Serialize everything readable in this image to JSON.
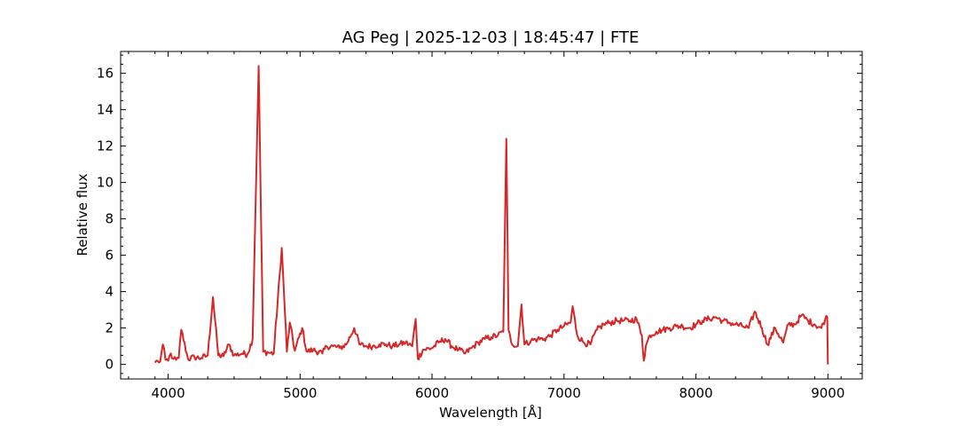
{
  "chart_data": {
    "type": "line",
    "title": "AG Peg | 2025-12-03 | 18:45:47 | FTE",
    "xlabel": "Wavelength [Å]",
    "ylabel": "Relative flux",
    "xlim": [
      3640,
      9260
    ],
    "ylim": [
      -0.8,
      17.2
    ],
    "xticks": [
      4000,
      5000,
      6000,
      7000,
      8000,
      9000
    ],
    "yticks": [
      0,
      2,
      4,
      6,
      8,
      10,
      12,
      14,
      16
    ],
    "grid": false,
    "series_color": "#d62728",
    "series": [
      {
        "x": [
          3900,
          3920,
          3940,
          3960,
          3980,
          4000,
          4020,
          4040,
          4060,
          4080,
          4100,
          4150,
          4200,
          4250,
          4300,
          4340,
          4380,
          4420,
          4460,
          4500,
          4560,
          4600,
          4640,
          4686,
          4720,
          4760,
          4800,
          4861,
          4900,
          4922,
          4960,
          5016,
          5050,
          5100,
          5169,
          5200,
          5250,
          5300,
          5350,
          5411,
          5450,
          5500,
          5550,
          5600,
          5650,
          5700,
          5750,
          5800,
          5850,
          5876,
          5893,
          5930,
          6000,
          6050,
          6100,
          6150,
          6200,
          6250,
          6300,
          6350,
          6400,
          6450,
          6500,
          6540,
          6563,
          6580,
          6600,
          6650,
          6678,
          6700,
          6750,
          6800,
          6850,
          6900,
          6950,
          7000,
          7050,
          7065,
          7100,
          7150,
          7200,
          7250,
          7300,
          7350,
          7400,
          7450,
          7500,
          7550,
          7590,
          7605,
          7620,
          7650,
          7700,
          7750,
          7800,
          7850,
          7900,
          7950,
          8000,
          8050,
          8100,
          8150,
          8200,
          8250,
          8300,
          8350,
          8400,
          8446,
          8500,
          8542,
          8600,
          8662,
          8700,
          8750,
          8800,
          8850,
          8900,
          8950,
          8980,
          8995,
          9000
        ],
        "y": [
          0.1,
          0.2,
          0.15,
          1.1,
          0.25,
          0.2,
          0.6,
          0.3,
          0.25,
          0.35,
          1.9,
          0.3,
          0.4,
          0.35,
          0.5,
          3.7,
          0.5,
          0.45,
          1.1,
          0.5,
          0.6,
          0.55,
          1.4,
          16.4,
          0.7,
          0.65,
          0.6,
          6.4,
          0.7,
          2.3,
          0.75,
          2.0,
          0.7,
          0.8,
          0.6,
          1.0,
          1.0,
          0.9,
          1.1,
          2.0,
          1.1,
          1.0,
          1.0,
          1.1,
          1.1,
          1.0,
          1.1,
          1.2,
          1.0,
          2.5,
          0.3,
          0.8,
          0.9,
          1.2,
          1.4,
          1.0,
          0.8,
          0.6,
          0.9,
          1.2,
          1.4,
          1.5,
          1.6,
          1.8,
          12.4,
          1.9,
          1.2,
          1.0,
          3.3,
          1.1,
          1.3,
          1.4,
          1.4,
          1.6,
          1.9,
          2.1,
          2.3,
          3.2,
          1.6,
          1.2,
          1.1,
          1.9,
          2.2,
          2.3,
          2.4,
          2.4,
          2.4,
          2.5,
          1.6,
          0.2,
          1.0,
          1.6,
          1.8,
          1.9,
          2.0,
          2.1,
          2.1,
          2.0,
          2.2,
          2.4,
          2.5,
          2.6,
          2.4,
          2.3,
          2.2,
          2.1,
          2.0,
          2.9,
          2.0,
          1.1,
          2.0,
          1.2,
          2.2,
          2.2,
          2.7,
          2.4,
          2.2,
          2.0,
          2.5,
          2.6,
          0.0
        ]
      }
    ]
  }
}
